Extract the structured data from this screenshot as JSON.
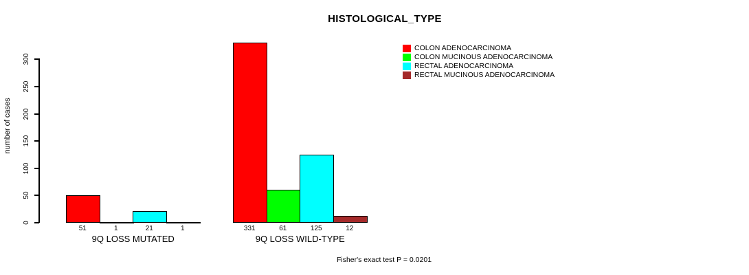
{
  "chart_data": {
    "type": "bar",
    "title": "HISTOLOGICAL_TYPE",
    "xlabel": "",
    "ylabel": "number of cases",
    "ylim": [
      0,
      300
    ],
    "yticks": [
      0,
      50,
      100,
      150,
      200,
      250,
      300
    ],
    "grid": false,
    "legend_position": "top-right",
    "categories": [
      "9Q LOSS MUTATED",
      "9Q LOSS WILD-TYPE"
    ],
    "series": [
      {
        "name": "COLON ADENOCARCINOMA",
        "color": "#ff0000",
        "values": [
          51,
          331
        ]
      },
      {
        "name": "COLON MUCINOUS ADENOCARCINOMA",
        "color": "#00ff00",
        "values": [
          1,
          61
        ]
      },
      {
        "name": "RECTAL ADENOCARCINOMA",
        "color": "#00ffff",
        "values": [
          21,
          125
        ]
      },
      {
        "name": "RECTAL MUCINOUS ADENOCARCINOMA",
        "color": "#a52a2a",
        "values": [
          1,
          12
        ]
      }
    ],
    "annotation": "Fisher's exact test P = 0.0201"
  }
}
